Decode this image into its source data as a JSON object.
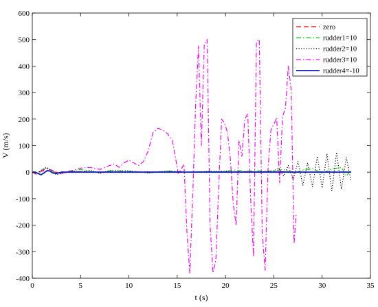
{
  "chart_data": {
    "type": "line",
    "title": "",
    "xlabel": "t (s)",
    "ylabel": "V (m/s)",
    "xlim": [
      0,
      35
    ],
    "ylim": [
      -400,
      600
    ],
    "xticks": [
      0,
      5,
      10,
      15,
      20,
      25,
      30,
      35
    ],
    "yticks": [
      -400,
      -300,
      -200,
      -100,
      0,
      100,
      200,
      300,
      400,
      500,
      600
    ],
    "grid": false,
    "legend_position": "top-right",
    "series": [
      {
        "name": "zero",
        "color": "#ff0000",
        "dash": "dashed",
        "x": [
          0,
          0.5,
          1,
          1.5,
          2,
          3,
          4,
          5,
          6,
          8,
          10,
          12,
          14,
          16,
          18,
          20,
          22,
          24,
          26,
          28,
          30,
          32,
          33
        ],
        "y": [
          0,
          -3,
          4,
          8,
          2,
          -4,
          1,
          2,
          0,
          1,
          0,
          1,
          0,
          0,
          1,
          0,
          2,
          0,
          2,
          0,
          1,
          0,
          1
        ]
      },
      {
        "name": "rudder1=10",
        "color": "#00dd00",
        "dash": "dashdot",
        "x": [
          0,
          0.5,
          1,
          1.5,
          2,
          2.5,
          3,
          4,
          5,
          6,
          7,
          8,
          10,
          12,
          14,
          16,
          18,
          20,
          21,
          22,
          23,
          24,
          25,
          26,
          27,
          28,
          29,
          30,
          31,
          32,
          32.5,
          33
        ],
        "y": [
          0,
          -5,
          8,
          15,
          6,
          -6,
          -3,
          3,
          10,
          2,
          -2,
          5,
          3,
          -2,
          4,
          0,
          2,
          3,
          8,
          3,
          6,
          3,
          5,
          10,
          -5,
          8,
          14,
          -5,
          12,
          18,
          -15,
          8
        ]
      },
      {
        "name": "rudder2=10",
        "color": "#000000",
        "dash": "dotted",
        "x": [
          0,
          0.5,
          1,
          1.5,
          2,
          2.5,
          3,
          4,
          5,
          6,
          7,
          8,
          10,
          12,
          14,
          16,
          18,
          20,
          22,
          24,
          25,
          25.5,
          26,
          26.5,
          27,
          27.5,
          28,
          28.5,
          29,
          29.5,
          30,
          30.5,
          31,
          31.5,
          32,
          32.5,
          33
        ],
        "y": [
          0,
          -5,
          10,
          18,
          5,
          -10,
          -5,
          5,
          0,
          8,
          -5,
          6,
          5,
          -3,
          4,
          0,
          2,
          3,
          0,
          2,
          5,
          15,
          -15,
          25,
          -30,
          40,
          -50,
          35,
          -55,
          60,
          -60,
          70,
          -70,
          75,
          -65,
          55,
          -35
        ]
      },
      {
        "name": "rudder3=10",
        "color": "#ff00ff",
        "dash": "dashdot",
        "x": [
          0,
          0.5,
          1,
          1.5,
          2,
          2.5,
          3,
          4,
          5,
          6,
          7,
          8,
          8.5,
          9,
          9.5,
          10,
          11,
          11.5,
          12,
          12.5,
          13,
          13.5,
          14,
          14.5,
          14.8,
          15.1,
          15.4,
          15.7,
          16,
          16.3,
          16.6,
          16.9,
          17.2,
          17.5,
          17.8,
          18.1,
          18.4,
          18.7,
          19,
          19.3,
          19.6,
          19.9,
          20.2,
          20.5,
          20.8,
          21.1,
          21.4,
          21.7,
          22,
          22.3,
          22.6,
          22.9,
          23.2,
          23.5,
          23.8,
          24.1,
          24.4,
          24.7,
          25,
          25.3,
          25.6,
          25.9,
          26.2,
          26.5,
          26.8,
          27.1,
          27.3
        ],
        "y": [
          0,
          -10,
          5,
          15,
          8,
          0,
          -5,
          5,
          15,
          18,
          10,
          25,
          30,
          18,
          35,
          45,
          25,
          40,
          80,
          150,
          165,
          160,
          145,
          120,
          60,
          -5,
          10,
          30,
          -220,
          -380,
          -100,
          250,
          475,
          100,
          480,
          500,
          -200,
          -380,
          -330,
          -50,
          200,
          185,
          150,
          50,
          -120,
          -200,
          120,
          60,
          200,
          220,
          -100,
          -320,
          490,
          500,
          -230,
          -370,
          10,
          160,
          180,
          205,
          -40,
          210,
          240,
          400,
          310,
          -270,
          -160
        ]
      },
      {
        "name": "rudder4=-10",
        "color": "#0b1ab8",
        "dash": "solid",
        "x": [
          0,
          0.3,
          0.6,
          0.9,
          1.2,
          1.5,
          1.8,
          2.1,
          2.5,
          3,
          4,
          5,
          8,
          12,
          16,
          20,
          25,
          30,
          33
        ],
        "y": [
          0,
          0,
          -5,
          -10,
          -3,
          5,
          5,
          -3,
          -5,
          0,
          0,
          0,
          0,
          0,
          0,
          0,
          0,
          0,
          0
        ]
      }
    ]
  }
}
